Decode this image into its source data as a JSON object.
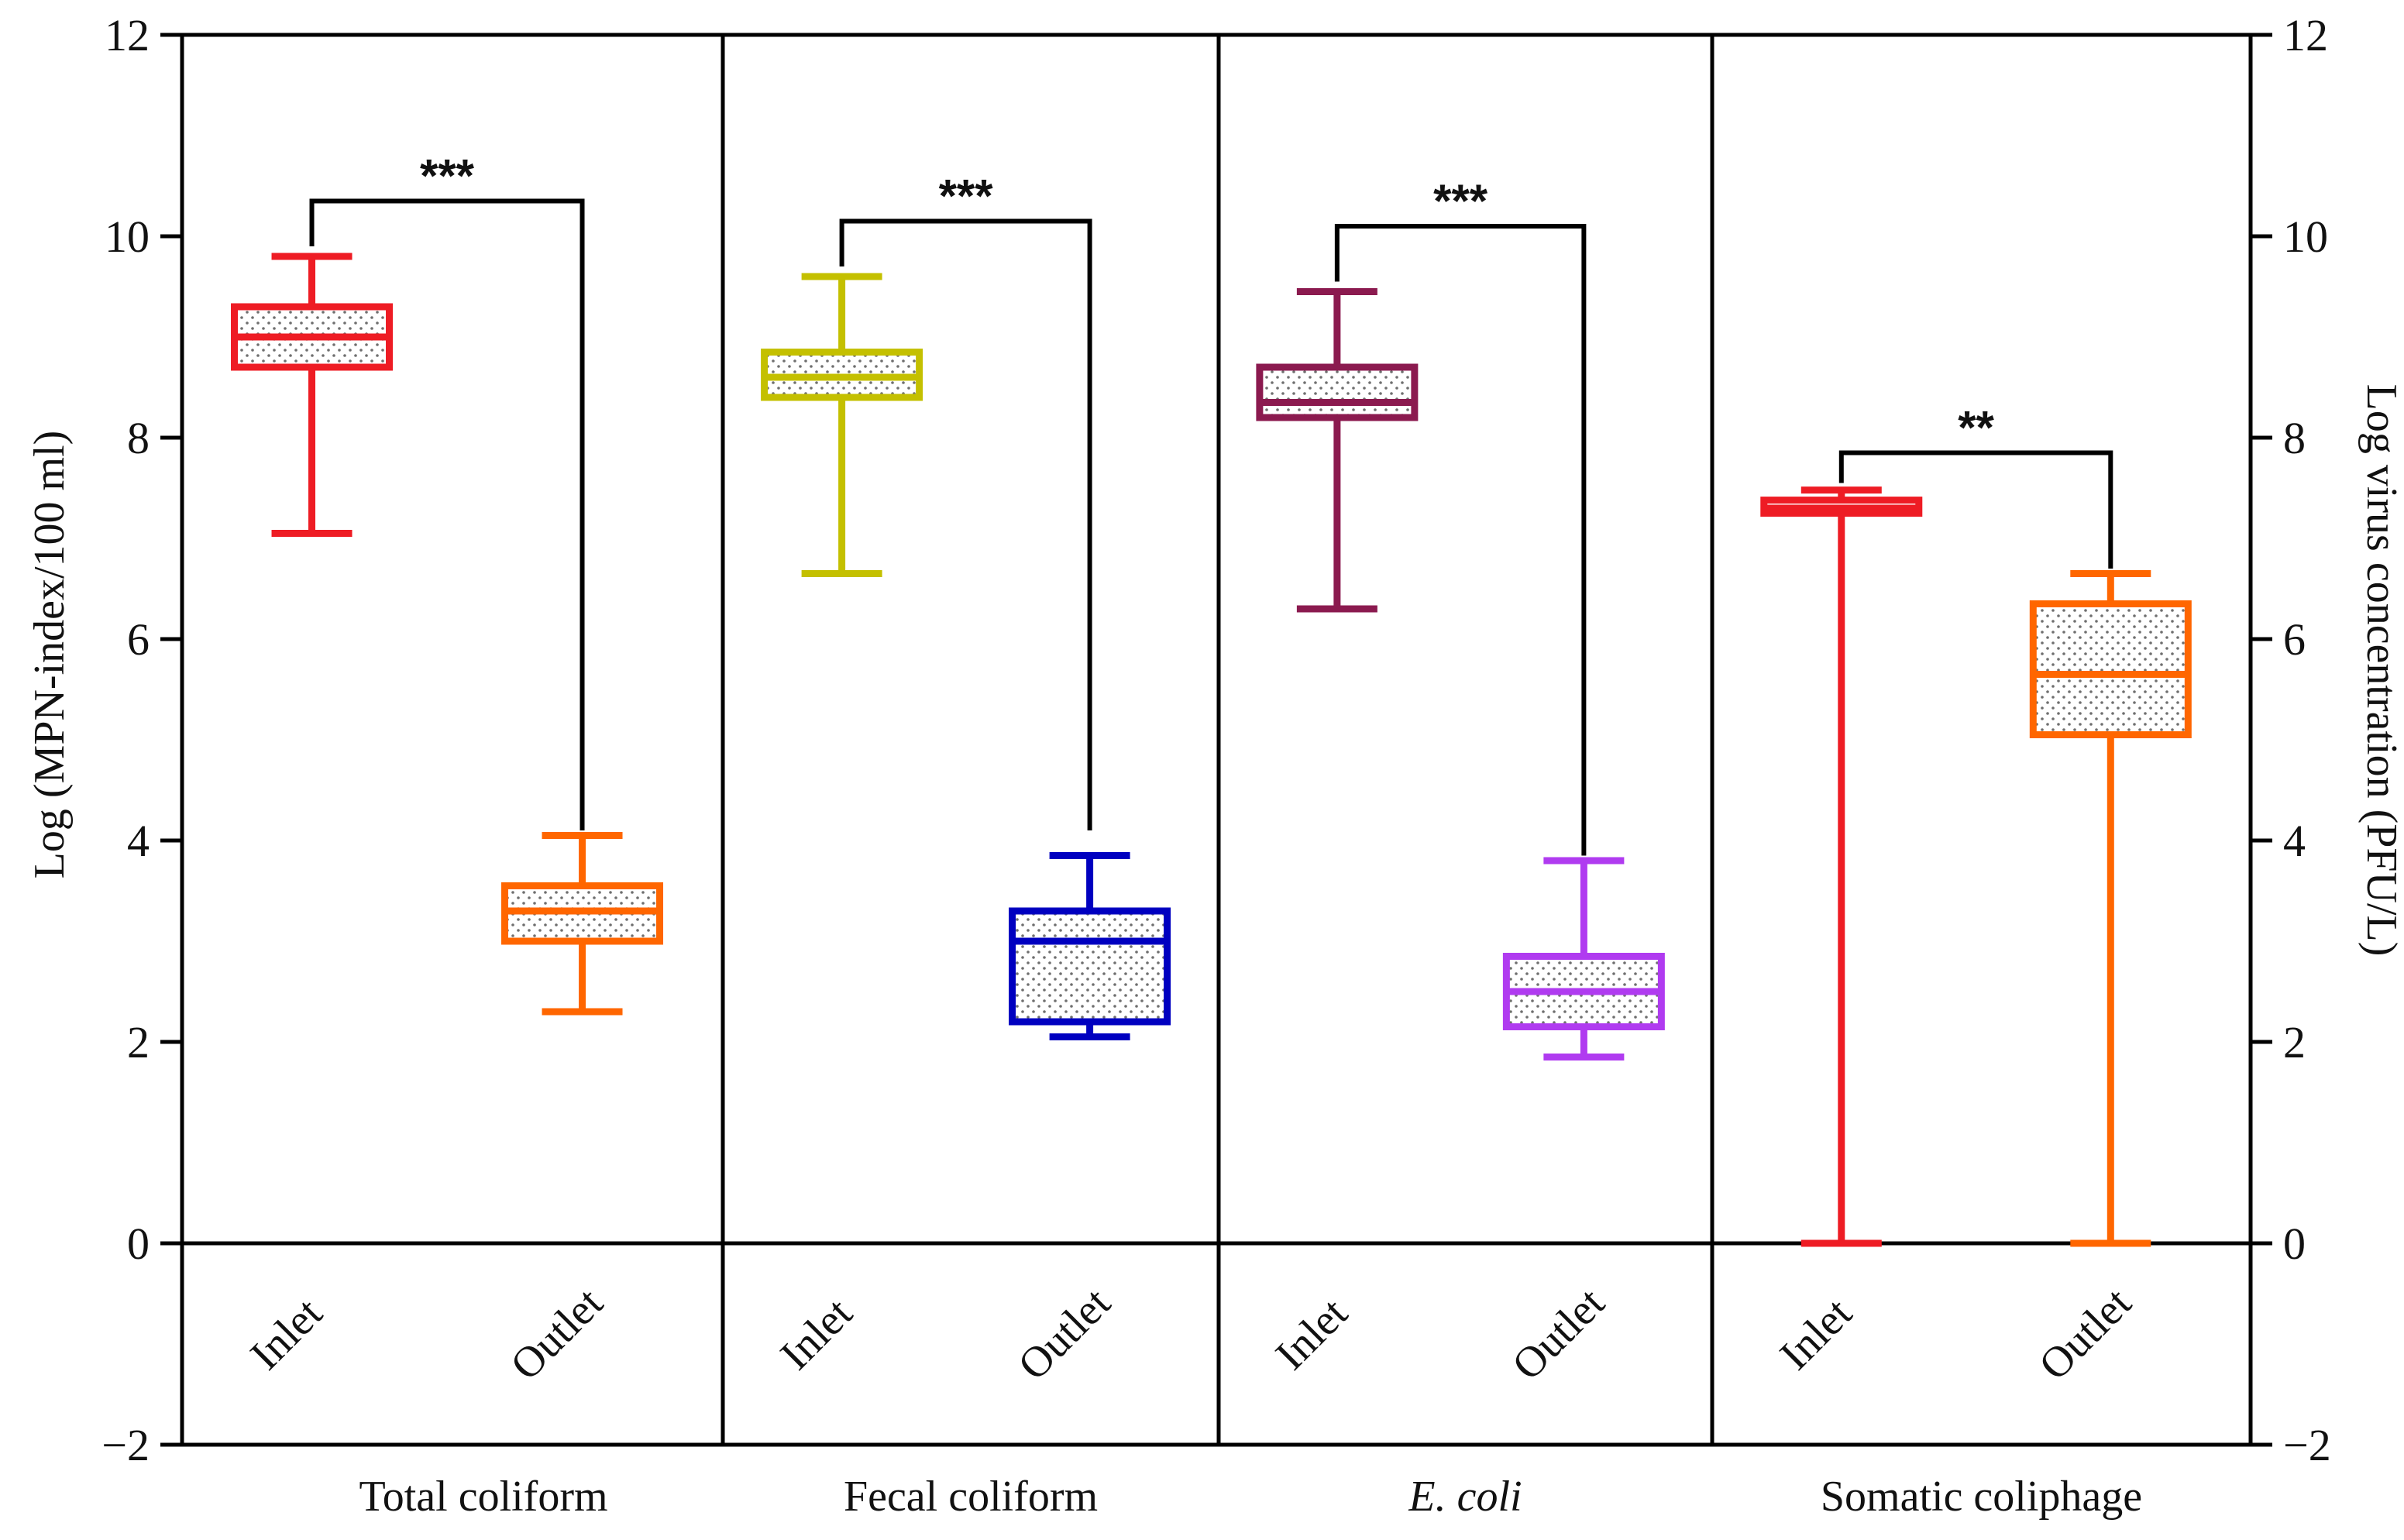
{
  "chart_data": {
    "type": "box",
    "y_left": {
      "label": "Log (MPN-index/100 ml)",
      "ylim": [
        -2,
        12
      ],
      "ticks": [
        -2,
        0,
        2,
        4,
        6,
        8,
        10,
        12
      ],
      "tick_labels": [
        "−2",
        "0",
        "2",
        "4",
        "6",
        "8",
        "10",
        "12"
      ]
    },
    "y_right": {
      "label": "Log virus concentration (PFU/L)",
      "ylim": [
        -2,
        12
      ],
      "ticks": [
        -2,
        0,
        2,
        4,
        6,
        8,
        10,
        12
      ],
      "tick_labels": [
        "−2",
        "0",
        "2",
        "4",
        "6",
        "8",
        "10",
        "12"
      ]
    },
    "grid": false,
    "panels": [
      {
        "label": "Total coliform",
        "italic": false,
        "boxes": [
          {
            "category": "Inlet",
            "min": 7.05,
            "q1": 8.7,
            "median": 9.0,
            "q3": 9.3,
            "max": 9.8,
            "color": "#ee1c24"
          },
          {
            "category": "Outlet",
            "min": 2.3,
            "q1": 3.0,
            "median": 3.3,
            "q3": 3.55,
            "max": 4.05,
            "color": "#ff6600"
          }
        ],
        "significance": "***",
        "sig_bar_y": 10.35,
        "sig_start": [
          9.9,
          4.1
        ]
      },
      {
        "label": "Fecal coliform",
        "italic": false,
        "boxes": [
          {
            "category": "Inlet",
            "min": 6.65,
            "q1": 8.4,
            "median": 8.6,
            "q3": 8.85,
            "max": 9.6,
            "color": "#c4c000"
          },
          {
            "category": "Outlet",
            "min": 2.05,
            "q1": 2.2,
            "median": 3.0,
            "q3": 3.3,
            "max": 3.85,
            "color": "#0000c0"
          }
        ],
        "significance": "***",
        "sig_bar_y": 10.15,
        "sig_start": [
          9.7,
          4.1
        ]
      },
      {
        "label": "E. coli",
        "italic": true,
        "boxes": [
          {
            "category": "Inlet",
            "min": 6.3,
            "q1": 8.2,
            "median": 8.35,
            "q3": 8.7,
            "max": 9.45,
            "color": "#8b1a4f"
          },
          {
            "category": "Outlet",
            "min": 1.85,
            "q1": 2.15,
            "median": 2.5,
            "q3": 2.85,
            "max": 3.8,
            "color": "#b03bf0"
          }
        ],
        "significance": "***",
        "sig_bar_y": 10.1,
        "sig_start": [
          9.55,
          3.85
        ]
      },
      {
        "label": "Somatic coliphage",
        "italic": false,
        "boxes": [
          {
            "category": "Inlet",
            "min": 0.0,
            "q1": 7.25,
            "median": 7.3,
            "q3": 7.38,
            "max": 7.48,
            "color": "#ee1c24"
          },
          {
            "category": "Outlet",
            "min": 0.0,
            "q1": 5.05,
            "median": 5.65,
            "q3": 6.35,
            "max": 6.65,
            "color": "#ff6600"
          }
        ],
        "significance": "**",
        "sig_bar_y": 7.85,
        "sig_start": [
          7.55,
          6.7
        ]
      }
    ]
  }
}
